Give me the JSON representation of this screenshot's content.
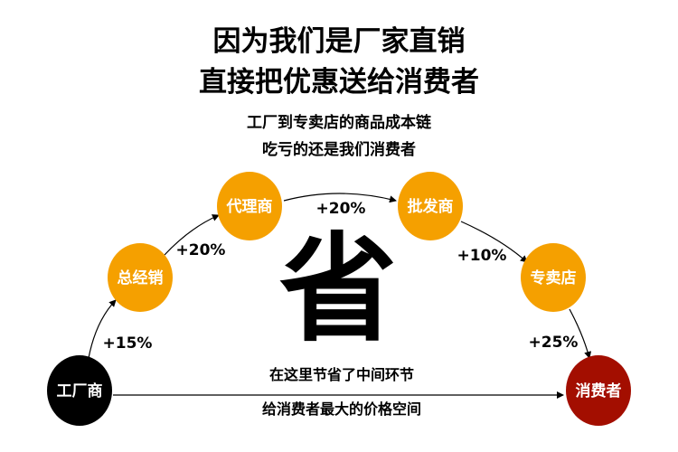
{
  "header": {
    "title_line1": "因为我们是厂家直销",
    "title_line2": "直接把优惠送给消费者",
    "subtitle_line1": "工厂到专卖店的商品成本链",
    "subtitle_line2": "吃亏的还是我们消费者"
  },
  "colors": {
    "factory": "#000000",
    "middleman": "#f5a000",
    "consumer": "#a30e00"
  },
  "nodes": [
    {
      "label": "工厂商",
      "color": "#000000"
    },
    {
      "label": "总经销",
      "color": "#f5a000"
    },
    {
      "label": "代理商",
      "color": "#f5a000"
    },
    {
      "label": "批发商",
      "color": "#f5a000"
    },
    {
      "label": "专卖店",
      "color": "#f5a000"
    },
    {
      "label": "消费者",
      "color": "#a30e00"
    }
  ],
  "markups": [
    "+15%",
    "+20%",
    "+20%",
    "+10%",
    "+25%"
  ],
  "center_char": "省",
  "direct": {
    "line1": "在这里节省了中间环节",
    "line2": "给消费者最大的价格空间"
  }
}
